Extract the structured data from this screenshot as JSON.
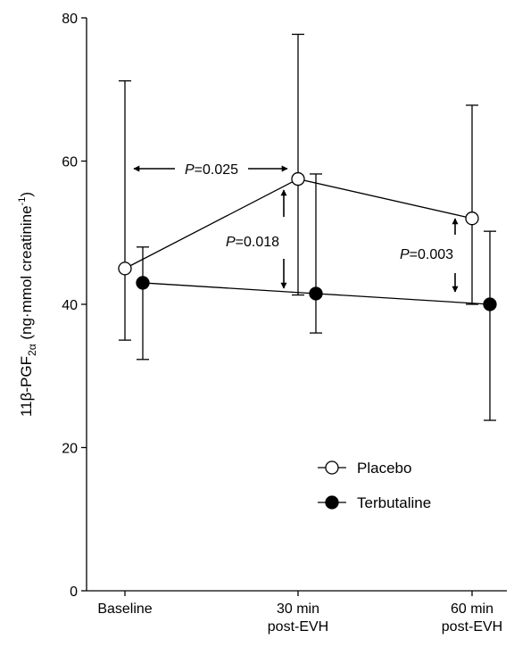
{
  "chart_data": {
    "type": "line",
    "title": "",
    "ylabel": {
      "main": "11β-PGF",
      "sub": "2α",
      "units_open": " (ng·mmol creatinine",
      "sup": "-1",
      "units_close": ")"
    },
    "xlabel": "",
    "categories": [
      [
        "Baseline"
      ],
      [
        "30 min",
        "post-EVH"
      ],
      [
        "60 min",
        "post-EVH"
      ]
    ],
    "ylim": [
      0,
      80
    ],
    "yticks": [
      0,
      20,
      40,
      60,
      80
    ],
    "grid": false,
    "legend_position": "lower-right",
    "series": [
      {
        "name": "Placebo",
        "marker": "open-circle",
        "color": "#000000",
        "values": [
          45,
          57.5,
          52
        ],
        "error_upper": [
          71.2,
          77.7,
          67.8
        ],
        "error_lower": [
          35,
          41.3,
          40
        ]
      },
      {
        "name": "Terbutaline",
        "marker": "filled-circle",
        "color": "#000000",
        "values": [
          43,
          41.5,
          40
        ],
        "error_upper": [
          48,
          58.2,
          50.2
        ],
        "error_lower": [
          32.3,
          36,
          23.8
        ]
      }
    ],
    "annotations": [
      {
        "id": "p025",
        "italic": "P",
        "text": "=0.025"
      },
      {
        "id": "p018",
        "italic": "P",
        "text": "=0.018"
      },
      {
        "id": "p003",
        "italic": "P",
        "text": "=0.003"
      }
    ]
  }
}
